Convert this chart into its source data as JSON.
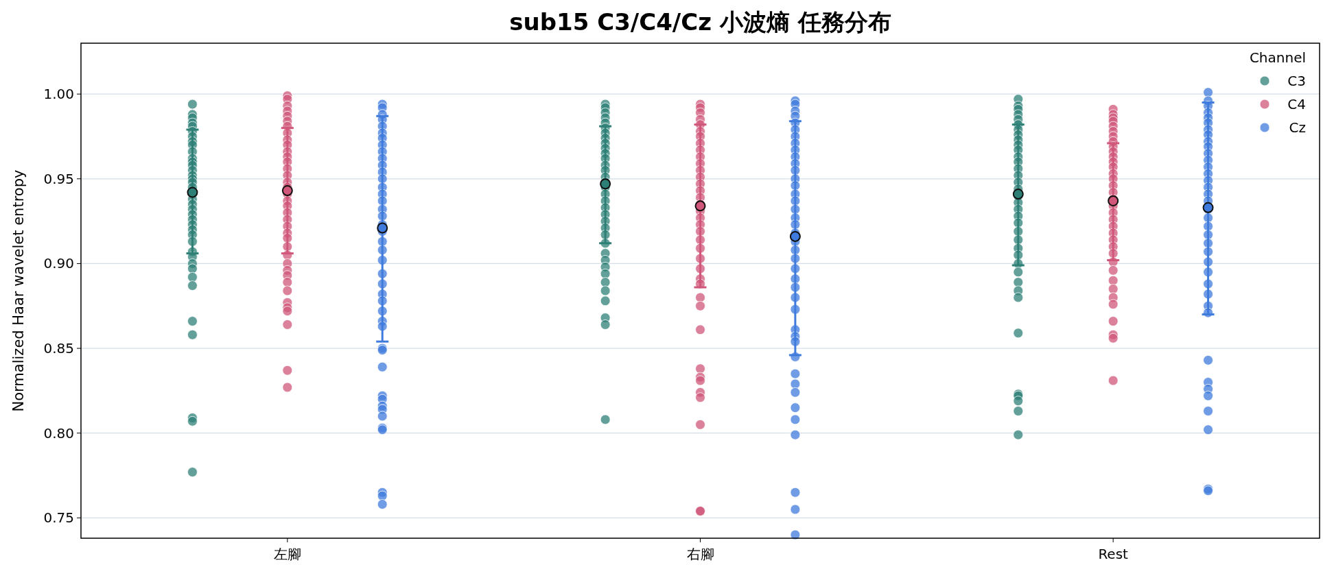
{
  "chart_data": {
    "type": "scatter",
    "title": "sub15 C3/C4/Cz 小波熵 任務分布",
    "ylabel": "Normalized Haar wavelet entropy",
    "legend_title": "Channel",
    "legend": "top right",
    "grid": "y",
    "marker": "circle",
    "categories": [
      "左腳",
      "右腳",
      "Rest"
    ],
    "ylim": [
      0.738,
      1.03
    ],
    "yticks": [
      0.75,
      {
        "value": 0.8,
        "label": "0.80"
      },
      0.85,
      {
        "value": 0.9,
        "label": "0.90"
      },
      0.95,
      {
        "value": 1.0,
        "label": "1.00"
      }
    ],
    "series": [
      {
        "name": "C3",
        "color": "#2e8077",
        "x": [
          "左腳",
          "左腳",
          "左腳",
          "左腳",
          "左腳",
          "左腳",
          "左腳",
          "左腳",
          "左腳",
          "左腳",
          "左腳",
          "左腳",
          "左腳",
          "左腳",
          "左腳",
          "左腳",
          "左腳",
          "左腳",
          "左腳",
          "左腳",
          "左腳",
          "左腳",
          "左腳",
          "左腳",
          "左腳",
          "左腳",
          "左腳",
          "左腳",
          "左腳",
          "左腳",
          "左腳",
          "左腳",
          "左腳",
          "左腳",
          "左腳",
          "左腳",
          "左腳",
          "左腳",
          "右腳",
          "右腳",
          "右腳",
          "右腳",
          "右腳",
          "右腳",
          "右腳",
          "右腳",
          "右腳",
          "右腳",
          "右腳",
          "右腳",
          "右腳",
          "右腳",
          "右腳",
          "右腳",
          "右腳",
          "右腳",
          "右腳",
          "右腳",
          "右腳",
          "右腳",
          "右腳",
          "右腳",
          "右腳",
          "右腳",
          "右腳",
          "右腳",
          "右腳",
          "右腳",
          "右腳",
          "右腳",
          "右腳",
          "右腳",
          "右腳",
          "Rest",
          "Rest",
          "Rest",
          "Rest",
          "Rest",
          "Rest",
          "Rest",
          "Rest",
          "Rest",
          "Rest",
          "Rest",
          "Rest",
          "Rest",
          "Rest",
          "Rest",
          "Rest",
          "Rest",
          "Rest",
          "Rest",
          "Rest",
          "Rest",
          "Rest",
          "Rest",
          "Rest",
          "Rest",
          "Rest",
          "Rest",
          "Rest",
          "Rest",
          "Rest",
          "Rest",
          "Rest",
          "Rest",
          "Rest",
          "Rest",
          "Rest",
          "Rest"
        ],
        "values": [
          0.994,
          0.988,
          0.986,
          0.983,
          0.981,
          0.978,
          0.975,
          0.972,
          0.97,
          0.966,
          0.962,
          0.96,
          0.958,
          0.955,
          0.952,
          0.95,
          0.948,
          0.945,
          0.938,
          0.935,
          0.932,
          0.929,
          0.926,
          0.923,
          0.92,
          0.917,
          0.913,
          0.907,
          0.904,
          0.9,
          0.897,
          0.892,
          0.887,
          0.866,
          0.858,
          0.809,
          0.807,
          0.777,
          0.994,
          0.992,
          0.989,
          0.986,
          0.983,
          0.98,
          0.977,
          0.974,
          0.971,
          0.968,
          0.965,
          0.962,
          0.958,
          0.955,
          0.951,
          0.948,
          0.945,
          0.941,
          0.937,
          0.933,
          0.929,
          0.925,
          0.921,
          0.917,
          0.912,
          0.906,
          0.902,
          0.898,
          0.894,
          0.889,
          0.884,
          0.878,
          0.868,
          0.864,
          0.808,
          0.997,
          0.993,
          0.991,
          0.988,
          0.985,
          0.982,
          0.979,
          0.976,
          0.973,
          0.97,
          0.967,
          0.963,
          0.96,
          0.956,
          0.952,
          0.948,
          0.944,
          0.94,
          0.936,
          0.932,
          0.928,
          0.924,
          0.919,
          0.914,
          0.909,
          0.905,
          0.9,
          0.895,
          0.889,
          0.884,
          0.88,
          0.859,
          0.823,
          0.822,
          0.819,
          0.813,
          0.799
        ]
      },
      {
        "name": "C4",
        "color": "#d0577a",
        "x": [
          "左腳",
          "左腳",
          "左腳",
          "左腳",
          "左腳",
          "左腳",
          "左腳",
          "左腳",
          "左腳",
          "左腳",
          "左腳",
          "左腳",
          "左腳",
          "左腳",
          "左腳",
          "左腳",
          "左腳",
          "左腳",
          "左腳",
          "左腳",
          "左腳",
          "左腳",
          "左腳",
          "左腳",
          "左腳",
          "左腳",
          "左腳",
          "左腳",
          "左腳",
          "左腳",
          "左腳",
          "左腳",
          "左腳",
          "左腳",
          "左腳",
          "左腳",
          "左腳",
          "左腳",
          "右腳",
          "右腳",
          "右腳",
          "右腳",
          "右腳",
          "右腳",
          "右腳",
          "右腳",
          "右腳",
          "右腳",
          "右腳",
          "右腳",
          "右腳",
          "右腳",
          "右腳",
          "右腳",
          "右腳",
          "右腳",
          "右腳",
          "右腳",
          "右腳",
          "右腳",
          "右腳",
          "右腳",
          "右腳",
          "右腳",
          "右腳",
          "右腳",
          "右腳",
          "右腳",
          "右腳",
          "右腳",
          "右腳",
          "右腳",
          "右腳",
          "右腳",
          "右腳",
          "右腳",
          "Rest",
          "Rest",
          "Rest",
          "Rest",
          "Rest",
          "Rest",
          "Rest",
          "Rest",
          "Rest",
          "Rest",
          "Rest",
          "Rest",
          "Rest",
          "Rest",
          "Rest",
          "Rest",
          "Rest",
          "Rest",
          "Rest",
          "Rest",
          "Rest",
          "Rest",
          "Rest",
          "Rest",
          "Rest",
          "Rest",
          "Rest",
          "Rest",
          "Rest",
          "Rest",
          "Rest",
          "Rest",
          "Rest",
          "Rest",
          "Rest",
          "Rest"
        ],
        "values": [
          0.999,
          0.997,
          0.993,
          0.99,
          0.987,
          0.984,
          0.981,
          0.977,
          0.973,
          0.97,
          0.966,
          0.963,
          0.96,
          0.956,
          0.952,
          0.948,
          0.945,
          0.941,
          0.937,
          0.934,
          0.93,
          0.926,
          0.922,
          0.918,
          0.915,
          0.91,
          0.905,
          0.9,
          0.896,
          0.893,
          0.889,
          0.884,
          0.877,
          0.874,
          0.872,
          0.864,
          0.837,
          0.827,
          0.994,
          0.992,
          0.989,
          0.985,
          0.982,
          0.978,
          0.975,
          0.971,
          0.967,
          0.963,
          0.959,
          0.955,
          0.951,
          0.947,
          0.943,
          0.939,
          0.935,
          0.931,
          0.927,
          0.923,
          0.919,
          0.914,
          0.909,
          0.903,
          0.897,
          0.891,
          0.888,
          0.88,
          0.875,
          0.861,
          0.838,
          0.833,
          0.831,
          0.824,
          0.821,
          0.805,
          0.754,
          0.754,
          0.991,
          0.988,
          0.986,
          0.984,
          0.981,
          0.978,
          0.975,
          0.972,
          0.969,
          0.966,
          0.963,
          0.96,
          0.957,
          0.953,
          0.95,
          0.946,
          0.942,
          0.938,
          0.934,
          0.93,
          0.926,
          0.922,
          0.918,
          0.914,
          0.91,
          0.906,
          0.901,
          0.896,
          0.89,
          0.885,
          0.88,
          0.876,
          0.866,
          0.858,
          0.856,
          0.831
        ]
      },
      {
        "name": "Cz",
        "color": "#3f7bdc",
        "x": [
          "左腳",
          "左腳",
          "左腳",
          "左腳",
          "左腳",
          "左腳",
          "左腳",
          "左腳",
          "左腳",
          "左腳",
          "左腳",
          "左腳",
          "左腳",
          "左腳",
          "左腳",
          "左腳",
          "左腳",
          "左腳",
          "左腳",
          "左腳",
          "左腳",
          "左腳",
          "左腳",
          "左腳",
          "左腳",
          "左腳",
          "左腳",
          "左腳",
          "左腳",
          "左腳",
          "左腳",
          "左腳",
          "左腳",
          "左腳",
          "左腳",
          "左腳",
          "左腳",
          "左腳",
          "左腳",
          "左腳",
          "左腳",
          "左腳",
          "左腳",
          "右腳",
          "右腳",
          "右腳",
          "右腳",
          "右腳",
          "右腳",
          "右腳",
          "右腳",
          "右腳",
          "右腳",
          "右腳",
          "右腳",
          "右腳",
          "右腳",
          "右腳",
          "右腳",
          "右腳",
          "右腳",
          "右腳",
          "右腳",
          "右腳",
          "右腳",
          "右腳",
          "右腳",
          "右腳",
          "右腳",
          "右腳",
          "右腳",
          "右腳",
          "右腳",
          "右腳",
          "右腳",
          "右腳",
          "右腳",
          "右腳",
          "右腳",
          "右腳",
          "右腳",
          "右腳",
          "右腳",
          "右腳",
          "Rest",
          "Rest",
          "Rest",
          "Rest",
          "Rest",
          "Rest",
          "Rest",
          "Rest",
          "Rest",
          "Rest",
          "Rest",
          "Rest",
          "Rest",
          "Rest",
          "Rest",
          "Rest",
          "Rest",
          "Rest",
          "Rest",
          "Rest",
          "Rest",
          "Rest",
          "Rest",
          "Rest",
          "Rest",
          "Rest",
          "Rest",
          "Rest",
          "Rest",
          "Rest",
          "Rest",
          "Rest",
          "Rest",
          "Rest",
          "Rest",
          "Rest",
          "Rest",
          "Rest"
        ],
        "values": [
          0.994,
          0.992,
          0.988,
          0.985,
          0.981,
          0.977,
          0.974,
          0.97,
          0.966,
          0.962,
          0.958,
          0.954,
          0.95,
          0.945,
          0.941,
          0.937,
          0.932,
          0.928,
          0.923,
          0.919,
          0.913,
          0.908,
          0.902,
          0.894,
          0.888,
          0.882,
          0.878,
          0.872,
          0.866,
          0.863,
          0.85,
          0.849,
          0.839,
          0.822,
          0.82,
          0.816,
          0.814,
          0.81,
          0.803,
          0.802,
          0.765,
          0.763,
          0.758,
          0.996,
          0.994,
          0.99,
          0.987,
          0.983,
          0.979,
          0.975,
          0.971,
          0.967,
          0.963,
          0.959,
          0.955,
          0.95,
          0.946,
          0.941,
          0.937,
          0.932,
          0.927,
          0.923,
          0.918,
          0.913,
          0.908,
          0.903,
          0.897,
          0.891,
          0.886,
          0.88,
          0.873,
          0.861,
          0.857,
          0.854,
          0.845,
          0.835,
          0.829,
          0.824,
          0.815,
          0.808,
          0.799,
          0.765,
          0.755,
          0.74,
          1.001,
          0.996,
          0.993,
          0.989,
          0.986,
          0.983,
          0.979,
          0.976,
          0.972,
          0.969,
          0.965,
          0.961,
          0.957,
          0.953,
          0.949,
          0.945,
          0.941,
          0.937,
          0.932,
          0.927,
          0.922,
          0.917,
          0.912,
          0.907,
          0.901,
          0.895,
          0.888,
          0.882,
          0.875,
          0.871,
          0.843,
          0.83,
          0.826,
          0.822,
          0.813,
          0.802,
          0.767,
          0.766
        ]
      },
      {
        "color": "#2e8077",
        "x": [
          "左腳",
          "右腳",
          "Rest"
        ],
        "values": [
          0.942,
          0.947,
          0.941
        ],
        "errors": [
          [
            0.906,
            0.979
          ],
          [
            0.912,
            0.981
          ],
          [
            0.899,
            0.982
          ]
        ]
      },
      {
        "color": "#d0577a",
        "x": [
          "左腳",
          "右腳",
          "Rest"
        ],
        "values": [
          0.943,
          0.934,
          0.937
        ],
        "errors": [
          [
            0.906,
            0.98
          ],
          [
            0.886,
            0.982
          ],
          [
            0.902,
            0.971
          ]
        ]
      },
      {
        "color": "#3f7bdc",
        "x": [
          "左腳",
          "右腳",
          "Rest"
        ],
        "values": [
          0.921,
          0.916,
          0.933
        ],
        "errors": [
          [
            0.854,
            0.987
          ],
          [
            0.846,
            0.984
          ],
          [
            0.87,
            0.995
          ]
        ]
      }
    ]
  }
}
